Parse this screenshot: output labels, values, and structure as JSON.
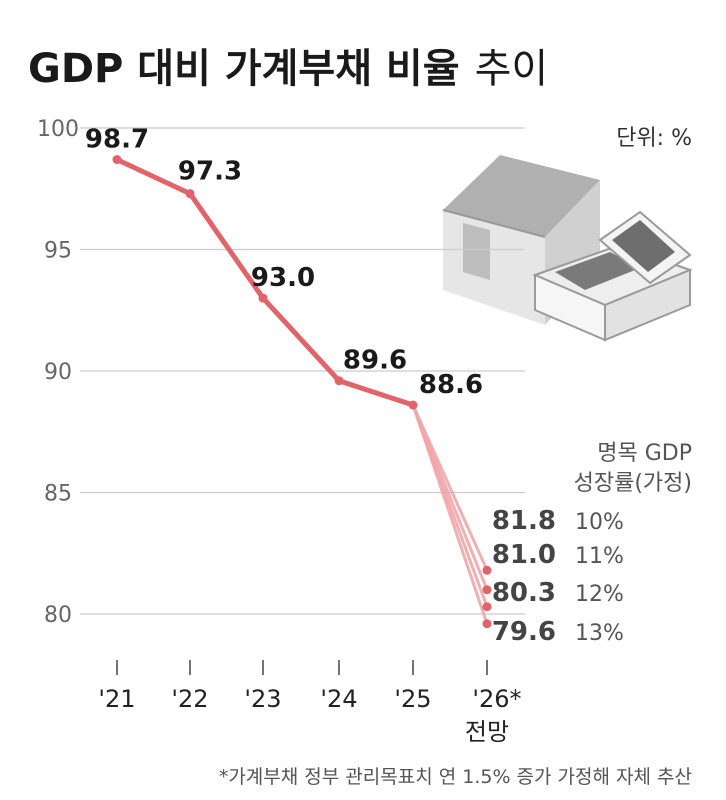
{
  "title": {
    "bold": "GDP 대비 가계부채 비율",
    "light": "추이"
  },
  "unit_label": "단위: %",
  "scenario_header": [
    "명목 GDP",
    "성장률(가정)"
  ],
  "footnote": "*가계부채 정부 관리목표치 연 1.5% 증가 가정해 자체 추산",
  "colors": {
    "line": "#e0646a",
    "line_light": "#f0a7aa",
    "grid": "#cccccc",
    "house": "#c4c4c4",
    "money_dark": "#777777"
  },
  "icons": [
    "house-icon",
    "money-bundle-icon"
  ],
  "chart_data": {
    "type": "line",
    "title": "GDP 대비 가계부채 비율 추이",
    "x_labels": [
      "'21",
      "'22",
      "'23",
      "'24",
      "'25",
      "'26*"
    ],
    "x_sublabel": "전망",
    "ylim": [
      78,
      100
    ],
    "yticks": [
      80,
      85,
      90,
      95,
      100
    ],
    "grid": true,
    "series": [
      {
        "x": [
          "'21",
          "'22",
          "'23",
          "'24",
          "'25"
        ],
        "values": [
          98.7,
          97.3,
          93.0,
          89.6,
          88.6
        ]
      }
    ],
    "labels": [
      "98.7",
      "97.3",
      "93.0",
      "89.6",
      "88.6"
    ],
    "projections": [
      {
        "name": "10%",
        "value": 81.8,
        "label": "81.8"
      },
      {
        "name": "11%",
        "value": 81.0,
        "label": "81.0"
      },
      {
        "name": "12%",
        "value": 80.3,
        "label": "80.3"
      },
      {
        "name": "13%",
        "value": 79.6,
        "label": "79.6"
      }
    ]
  }
}
